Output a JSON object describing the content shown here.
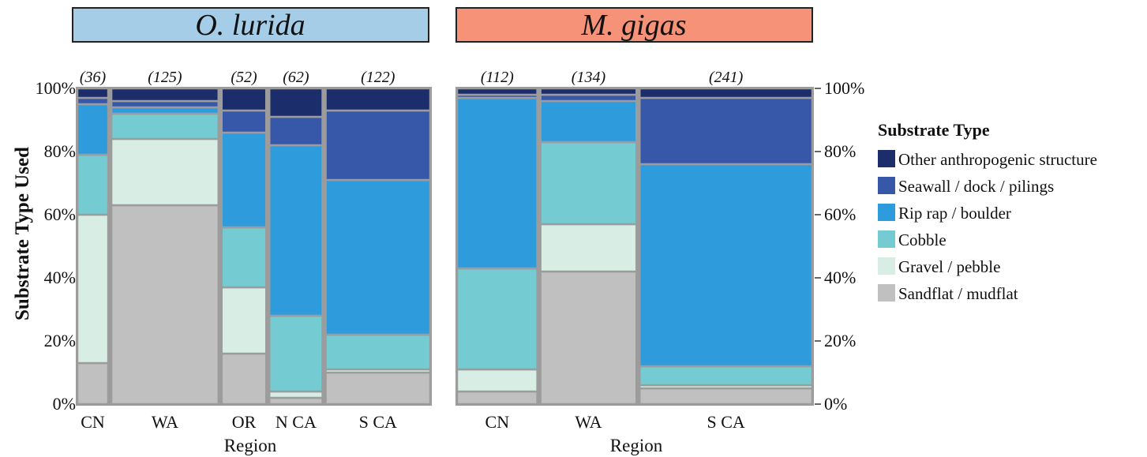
{
  "chart_data": [
    {
      "type": "mosaic",
      "title": "O. lurida",
      "title_bg": "#a5cde7",
      "xlabel": "Region",
      "ylabel": "Substrate Type Used",
      "yticks": [
        "0%",
        "20%",
        "40%",
        "60%",
        "80%",
        "100%"
      ],
      "ylim": [
        0,
        100
      ],
      "categories": [
        "CN",
        "WA",
        "OR",
        "N CA",
        "S CA"
      ],
      "counts": [
        "(36)",
        "(125)",
        "(52)",
        "(62)",
        "(122)"
      ],
      "count_values": [
        36,
        125,
        52,
        62,
        122
      ],
      "series": [
        {
          "name": "Sandflat / mudflat",
          "values": [
            13,
            63,
            16,
            2,
            10
          ]
        },
        {
          "name": "Gravel / pebble",
          "values": [
            47,
            21,
            21,
            2,
            1
          ]
        },
        {
          "name": "Cobble",
          "values": [
            19,
            8,
            19,
            24,
            11
          ]
        },
        {
          "name": "Rip rap / boulder",
          "values": [
            16,
            2,
            30,
            54,
            49
          ]
        },
        {
          "name": "Seawall / dock / pilings",
          "values": [
            2,
            2,
            7,
            9,
            22
          ]
        },
        {
          "name": "Other anthropogenic structure",
          "values": [
            3,
            4,
            7,
            9,
            7
          ]
        }
      ]
    },
    {
      "type": "mosaic",
      "title": "M. gigas",
      "title_bg": "#f59277",
      "xlabel": "Region",
      "yticks": [
        "0%",
        "20%",
        "40%",
        "60%",
        "80%",
        "100%"
      ],
      "ylim": [
        0,
        100
      ],
      "categories": [
        "CN",
        "WA",
        "S CA"
      ],
      "counts": [
        "(112)",
        "(134)",
        "(241)"
      ],
      "count_values": [
        112,
        134,
        241
      ],
      "series": [
        {
          "name": "Sandflat / mudflat",
          "values": [
            4,
            42,
            5
          ]
        },
        {
          "name": "Gravel / pebble",
          "values": [
            7,
            15,
            1
          ]
        },
        {
          "name": "Cobble",
          "values": [
            32,
            26,
            6
          ]
        },
        {
          "name": "Rip rap / boulder",
          "values": [
            54,
            13,
            64
          ]
        },
        {
          "name": "Seawall / dock / pilings",
          "values": [
            1,
            2,
            21
          ]
        },
        {
          "name": "Other anthropogenic structure",
          "values": [
            2,
            2,
            3
          ]
        }
      ]
    }
  ],
  "legend": {
    "title": "Substrate Type",
    "items": [
      {
        "label": "Other anthropogenic structure",
        "color": "#1c2d6b"
      },
      {
        "label": "Seawall / dock / pilings",
        "color": "#3757a8"
      },
      {
        "label": "Rip rap / boulder",
        "color": "#2e9bdc"
      },
      {
        "label": "Cobble",
        "color": "#74cbd2"
      },
      {
        "label": "Gravel / pebble",
        "color": "#d8eee5"
      },
      {
        "label": "Sandflat / mudflat",
        "color": "#c0c0c0"
      }
    ]
  }
}
